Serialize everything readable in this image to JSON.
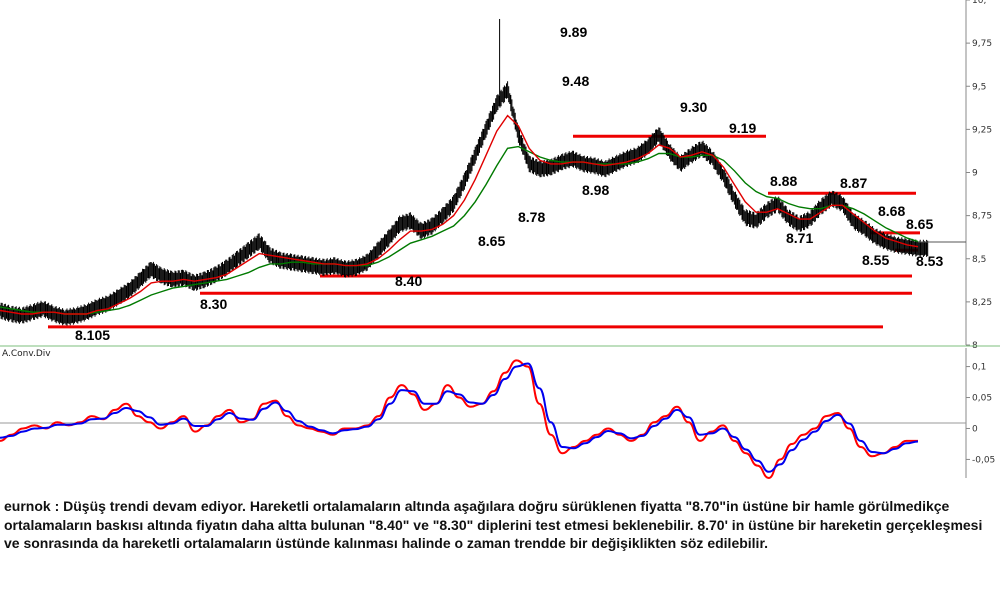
{
  "chart_data": [
    {
      "type": "line",
      "panel": "price",
      "ylim": [
        8.0,
        10.0
      ],
      "yticks": [
        "10,",
        "9,75",
        "9,5",
        "9,25",
        "9",
        "8,75",
        "8,5",
        "8,25",
        "8"
      ],
      "series": [],
      "support_resistance_levels": [
        8.105,
        8.3,
        8.4,
        8.55,
        8.65,
        8.88,
        9.21
      ],
      "annotations": [
        {
          "text": "9.89",
          "value": 9.89
        },
        {
          "text": "9.48",
          "value": 9.48
        },
        {
          "text": "9.30",
          "value": 9.3
        },
        {
          "text": "9.19",
          "value": 9.19
        },
        {
          "text": "8.98",
          "value": 8.98
        },
        {
          "text": "8.88",
          "value": 8.88
        },
        {
          "text": "8.87",
          "value": 8.87
        },
        {
          "text": "8.78",
          "value": 8.78
        },
        {
          "text": "8.71",
          "value": 8.71
        },
        {
          "text": "8.68",
          "value": 8.68
        },
        {
          "text": "8.65",
          "value": 8.65
        },
        {
          "text": "8.65",
          "value": 8.65
        },
        {
          "text": "8.55",
          "value": 8.55
        },
        {
          "text": "8.53",
          "value": 8.53
        },
        {
          "text": "8.40",
          "value": 8.4
        },
        {
          "text": "8.30",
          "value": 8.3
        },
        {
          "text": "8.105",
          "value": 8.105
        }
      ],
      "price_path": [
        8.2,
        8.18,
        8.17,
        8.19,
        8.21,
        8.18,
        8.16,
        8.17,
        8.19,
        8.22,
        8.24,
        8.28,
        8.32,
        8.38,
        8.44,
        8.4,
        8.38,
        8.39,
        8.36,
        8.38,
        8.41,
        8.45,
        8.5,
        8.55,
        8.6,
        8.52,
        8.49,
        8.48,
        8.47,
        8.46,
        8.45,
        8.46,
        8.44,
        8.45,
        8.48,
        8.55,
        8.62,
        8.7,
        8.72,
        8.66,
        8.69,
        8.75,
        8.82,
        8.95,
        9.1,
        9.25,
        9.4,
        9.48,
        9.22,
        9.05,
        9.02,
        9.03,
        9.06,
        9.08,
        9.05,
        9.04,
        9.02,
        9.05,
        9.08,
        9.1,
        9.15,
        9.22,
        9.12,
        9.05,
        9.1,
        9.14,
        9.08,
        8.98,
        8.85,
        8.74,
        8.72,
        8.78,
        8.82,
        8.74,
        8.7,
        8.73,
        8.8,
        8.85,
        8.82,
        8.72,
        8.68,
        8.63,
        8.6,
        8.58,
        8.57,
        8.56
      ],
      "ma_fast": [
        8.2,
        8.19,
        8.18,
        8.18,
        8.19,
        8.19,
        8.18,
        8.18,
        8.18,
        8.2,
        8.21,
        8.24,
        8.27,
        8.31,
        8.36,
        8.37,
        8.37,
        8.38,
        8.37,
        8.38,
        8.39,
        8.41,
        8.45,
        8.49,
        8.53,
        8.52,
        8.51,
        8.5,
        8.49,
        8.48,
        8.47,
        8.47,
        8.46,
        8.46,
        8.47,
        8.5,
        8.55,
        8.61,
        8.66,
        8.66,
        8.67,
        8.7,
        8.75,
        8.84,
        8.96,
        9.1,
        9.24,
        9.33,
        9.27,
        9.14,
        9.07,
        9.05,
        9.05,
        9.06,
        9.06,
        9.05,
        9.04,
        9.05,
        9.06,
        9.08,
        9.11,
        9.16,
        9.14,
        9.09,
        9.1,
        9.12,
        9.1,
        9.03,
        8.93,
        8.83,
        8.77,
        8.77,
        8.79,
        8.76,
        8.73,
        8.73,
        8.77,
        8.81,
        8.81,
        8.76,
        8.71,
        8.66,
        8.62,
        8.6,
        8.58,
        8.57
      ],
      "ma_slow": [
        8.22,
        8.21,
        8.2,
        8.19,
        8.19,
        8.19,
        8.18,
        8.18,
        8.18,
        8.19,
        8.2,
        8.21,
        8.23,
        8.26,
        8.29,
        8.31,
        8.33,
        8.34,
        8.35,
        8.36,
        8.37,
        8.38,
        8.4,
        8.42,
        8.45,
        8.47,
        8.47,
        8.48,
        8.48,
        8.47,
        8.47,
        8.47,
        8.46,
        8.46,
        8.46,
        8.48,
        8.51,
        8.55,
        8.59,
        8.61,
        8.63,
        8.66,
        8.69,
        8.75,
        8.83,
        8.93,
        9.04,
        9.14,
        9.15,
        9.12,
        9.09,
        9.07,
        9.06,
        9.06,
        9.06,
        9.05,
        9.05,
        9.05,
        9.05,
        9.06,
        9.08,
        9.11,
        9.11,
        9.09,
        9.09,
        9.1,
        9.1,
        9.07,
        9.01,
        8.94,
        8.89,
        8.86,
        8.85,
        8.82,
        8.8,
        8.79,
        8.79,
        8.81,
        8.81,
        8.79,
        8.76,
        8.72,
        8.68,
        8.65,
        8.62,
        8.6
      ]
    },
    {
      "type": "line",
      "panel": "indicator",
      "title": "A.Conv.Div",
      "ylim": [
        -0.08,
        0.13
      ],
      "yticks": [
        "0,1",
        "0,05",
        "0",
        "-0,05"
      ],
      "series": [],
      "macd": [
        -0.02,
        -0.01,
        0.0,
        0.005,
        0.0,
        0.01,
        0.005,
        0.01,
        0.02,
        0.015,
        0.03,
        0.04,
        0.02,
        0.01,
        0.0,
        0.01,
        0.02,
        -0.005,
        0.005,
        0.02,
        0.03,
        0.01,
        0.015,
        0.04,
        0.045,
        0.02,
        0.005,
        0.0,
        -0.005,
        -0.01,
        0.0,
        0.0,
        0.005,
        0.02,
        0.05,
        0.07,
        0.055,
        0.03,
        0.04,
        0.07,
        0.05,
        0.035,
        0.04,
        0.06,
        0.09,
        0.11,
        0.1,
        0.04,
        -0.01,
        -0.04,
        -0.03,
        -0.02,
        -0.01,
        0.0,
        -0.01,
        -0.02,
        -0.01,
        0.01,
        0.02,
        0.035,
        0.01,
        -0.02,
        -0.005,
        0.005,
        -0.02,
        -0.04,
        -0.06,
        -0.08,
        -0.05,
        -0.025,
        -0.01,
        0.0,
        0.02,
        0.025,
        0.0,
        -0.03,
        -0.045,
        -0.04,
        -0.03,
        -0.02,
        -0.02
      ],
      "signal": [
        -0.015,
        -0.012,
        -0.005,
        0.0,
        0.001,
        0.006,
        0.006,
        0.008,
        0.015,
        0.016,
        0.025,
        0.033,
        0.028,
        0.018,
        0.006,
        0.008,
        0.016,
        0.004,
        0.004,
        0.015,
        0.025,
        0.016,
        0.014,
        0.032,
        0.042,
        0.028,
        0.012,
        0.003,
        -0.003,
        -0.008,
        -0.003,
        -0.001,
        0.003,
        0.015,
        0.04,
        0.062,
        0.06,
        0.04,
        0.04,
        0.06,
        0.055,
        0.042,
        0.04,
        0.054,
        0.08,
        0.1,
        0.105,
        0.065,
        0.01,
        -0.03,
        -0.032,
        -0.024,
        -0.014,
        -0.004,
        -0.008,
        -0.016,
        -0.012,
        0.004,
        0.016,
        0.03,
        0.018,
        -0.01,
        -0.008,
        0.0,
        -0.014,
        -0.034,
        -0.052,
        -0.07,
        -0.058,
        -0.035,
        -0.018,
        -0.005,
        0.012,
        0.022,
        0.008,
        -0.02,
        -0.038,
        -0.04,
        -0.033,
        -0.024,
        -0.021
      ]
    }
  ],
  "commentary": "eurnok : Düşüş trendi devam ediyor. Hareketli ortalamaların altında aşağılara doğru sürüklenen fiyatta \"8.70\"in üstüne bir hamle görülmedikçe ortalamaların baskısı altında fiyatın daha altta bulunan \"8.40\" ve \"8.30\" diplerini test etmesi beklenebilir. 8.70' in üstüne bir hareketin gerçekleşmesi ve sonrasında da  hareketli ortalamaların üstünde kalınması halinde o zaman trendde bir değişiklikten söz edilebilir.",
  "colors": {
    "price": "#000000",
    "ma_fast": "#e00000",
    "ma_slow": "#007a00",
    "levels": "#ee0000",
    "macd": "#ff0000",
    "signal": "#0000ee",
    "axis": "#888888",
    "separator": "#7cbf7c"
  }
}
